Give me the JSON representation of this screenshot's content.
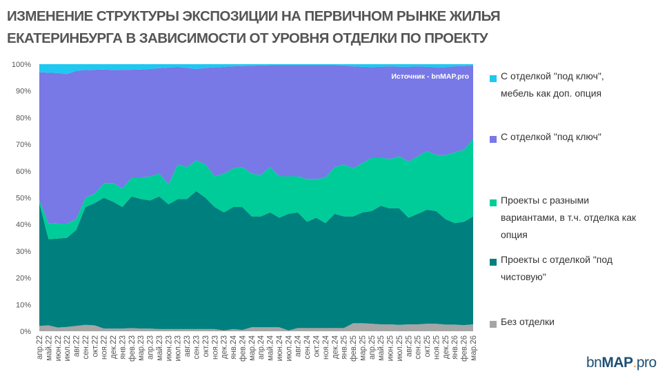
{
  "title": {
    "line1": "ИЗМЕНЕНИЕ СТРУКТУРЫ ЭКСПОЗИЦИИ НА ПЕРВИЧНОМ РЫНКЕ ЖИЛЬЯ",
    "line2": "ЕКАТЕРИНБУРГА В ЗАВИСИМОСТИ ОТ УРОВНЯ ОТДЕЛКИ ПО ПРОЕКТУ"
  },
  "source": "Источник - bnMAP.pro",
  "logo": {
    "part1": "bn",
    "part2": "MAP",
    "part3": ".",
    "part4": "pro"
  },
  "chart_data": {
    "type": "area",
    "stacked": "percent",
    "title": "ИЗМЕНЕНИЕ СТРУКТУРЫ ЭКСПОЗИЦИИ НА ПЕРВИЧНОМ РЫНКЕ ЖИЛЬЯ ЕКАТЕРИНБУРГА В ЗАВИСИМОСТИ ОТ УРОВНЯ ОТДЕЛКИ ПО ПРОЕКТУ",
    "xlabel": "",
    "ylabel": "",
    "ylim": [
      0,
      100
    ],
    "yticks": [
      "0%",
      "10%",
      "20%",
      "30%",
      "40%",
      "50%",
      "60%",
      "70%",
      "80%",
      "90%",
      "100%"
    ],
    "grid": false,
    "legend_position": "right",
    "categories": [
      "апр.22",
      "май.22",
      "июн.22",
      "июл.22",
      "авг.22",
      "сен.22",
      "окт.22",
      "ноя.22",
      "дек.22",
      "янв.23",
      "фев.23",
      "мар.23",
      "апр.23",
      "май.23",
      "июн.23",
      "июл.23",
      "авг.23",
      "сен.23",
      "окт.23",
      "ноя.23",
      "дек.23",
      "янв.24",
      "фев.24",
      "мар.24",
      "апр.24",
      "май.24",
      "июн.24",
      "июл.24",
      "авг.24",
      "сен.24",
      "окт.24",
      "ноя.24",
      "дек.24",
      "янв.25",
      "фев.25",
      "мар.25",
      "апр.25",
      "май.25",
      "июн.25",
      "июл.25",
      "авг.25",
      "сен.25",
      "окт.25",
      "ноя.25",
      "дек.25",
      "янв.26",
      "фев.26",
      "мар.26"
    ],
    "series": [
      {
        "name": "Без отделки",
        "color": "#a6a6a6",
        "values": [
          2,
          2.2,
          1.4,
          1.6,
          2,
          2.4,
          2.2,
          1,
          1,
          1,
          1.2,
          1,
          1,
          0.8,
          0.8,
          0.8,
          0.8,
          0.8,
          0.8,
          0.8,
          0.3,
          0.8,
          0.5,
          1.5,
          1.5,
          1.5,
          1.5,
          0.3,
          1.2,
          1.2,
          1.2,
          1.2,
          1.2,
          1.2,
          3,
          3,
          2.8,
          2.6,
          2.6,
          2.4,
          2.6,
          2.6,
          2.8,
          2.8,
          2.5,
          2.5,
          2.3,
          2.6
        ]
      },
      {
        "name": "Проекты с отделкой \"под чистовую\"",
        "color": "#007f7f",
        "values": [
          46,
          32.3,
          33.3,
          33.4,
          36,
          44.1,
          45.8,
          49,
          47.5,
          45.5,
          49.3,
          48.5,
          48,
          49.7,
          46.7,
          48.7,
          48.7,
          51.7,
          49.2,
          45.7,
          44.2,
          45.7,
          46,
          41.5,
          41.5,
          43,
          41,
          43.7,
          43.3,
          39.8,
          41.3,
          39.3,
          42.8,
          41.8,
          40,
          41.5,
          42.2,
          44.4,
          43.4,
          43.6,
          39.9,
          41.4,
          42.7,
          42.2,
          39.5,
          38,
          38.7,
          40.4
        ]
      },
      {
        "name": "Проекты с разными вариантами, в т.ч. отделка как опция",
        "color": "#00cc99",
        "values": [
          1,
          6,
          5.6,
          5.3,
          4,
          3.5,
          3.5,
          5.5,
          7,
          7,
          7,
          8,
          9,
          8.5,
          7.5,
          13,
          12,
          11.5,
          12.5,
          11.5,
          14.5,
          14.5,
          15,
          16,
          15.5,
          17,
          15.5,
          14,
          13.5,
          16,
          14.5,
          17,
          17.5,
          19.5,
          18,
          18.5,
          20,
          18,
          18.5,
          19.5,
          21,
          21.5,
          22,
          21,
          24,
          26.5,
          27,
          29
        ]
      },
      {
        "name": "С отделкой \"под ключ\"",
        "color": "#7878e6",
        "values": [
          48,
          56.3,
          56.4,
          56,
          55.5,
          47.8,
          46.4,
          42.5,
          42.3,
          44.4,
          40.4,
          40.5,
          40.2,
          39.5,
          43.7,
          36.5,
          37.1,
          34.2,
          36.1,
          40.8,
          40,
          38.2,
          37.8,
          40.4,
          41,
          38.1,
          41.6,
          41.6,
          41.6,
          42.6,
          42.6,
          42.1,
          38.1,
          37,
          38.2,
          36,
          33.9,
          34,
          34.7,
          33.5,
          35.5,
          33.7,
          31.5,
          32.9,
          32.9,
          32.2,
          31.3,
          27.5
        ]
      },
      {
        "name": "С отделкой \"под ключ\", мебель как доп. опция",
        "color": "#1ec8f0",
        "values": [
          3,
          3.2,
          3.3,
          3.7,
          2.5,
          2.2,
          2.1,
          2,
          2.2,
          2.1,
          2.1,
          2,
          1.8,
          1.5,
          1.3,
          1,
          1.4,
          1.8,
          1.4,
          1.2,
          1,
          0.8,
          0.7,
          0.6,
          0.5,
          0.4,
          0.4,
          0.4,
          0.4,
          0.4,
          0.4,
          0.4,
          0.4,
          0.5,
          0.8,
          1,
          1.1,
          1,
          0.8,
          1,
          1,
          0.8,
          1,
          1.1,
          1.1,
          0.8,
          0.7,
          0.5
        ]
      }
    ]
  },
  "legend": [
    {
      "line1": "С отделкой \"под ключ\",",
      "line2": "мебель как доп. опция",
      "color": "#1ec8f0"
    },
    {
      "line1": "С отделкой \"под ключ\"",
      "color": "#7878e6"
    },
    {
      "line1": "Проекты с разными",
      "line2": "вариантами, в т.ч. отделка как",
      "line3": "опция",
      "color": "#00cc99"
    },
    {
      "line1": "Проекты с отделкой \"под",
      "line2": "чистовую\"",
      "color": "#007f7f"
    },
    {
      "line1": "Без отделки",
      "color": "#a6a6a6"
    }
  ]
}
